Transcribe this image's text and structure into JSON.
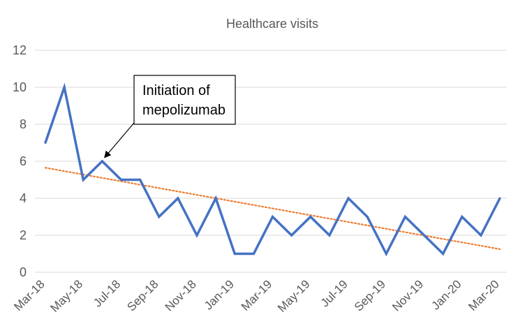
{
  "chart_data": {
    "type": "line",
    "title": "Healthcare visits",
    "xlabel": "",
    "ylabel": "",
    "ylim": [
      0,
      12
    ],
    "y_ticks": [
      0,
      2,
      4,
      6,
      8,
      10,
      12
    ],
    "x_tick_labels": [
      "Mar-18",
      "May-18",
      "Jul-18",
      "Sep-18",
      "Nov-18",
      "Jan-19",
      "Mar-19",
      "May-19",
      "Jul-19",
      "Sep-19",
      "Nov-19",
      "Jan-20",
      "Mar-20"
    ],
    "x": [
      "Mar-18",
      "Apr-18",
      "May-18",
      "Jun-18",
      "Jul-18",
      "Aug-18",
      "Sep-18",
      "Oct-18",
      "Nov-18",
      "Dec-18",
      "Jan-19",
      "Feb-19",
      "Mar-19",
      "Apr-19",
      "May-19",
      "Jun-19",
      "Jul-19",
      "Aug-19",
      "Sep-19",
      "Oct-19",
      "Nov-19",
      "Dec-19",
      "Jan-20",
      "Feb-20",
      "Mar-20"
    ],
    "series": [
      {
        "values": [
          7,
          10,
          5,
          6,
          5,
          5,
          3,
          4,
          2,
          4,
          1,
          1,
          3,
          2,
          3,
          2,
          4,
          3,
          1,
          3,
          2,
          1,
          3,
          2,
          4
        ],
        "color": "#4472C4",
        "style": "solid"
      }
    ],
    "trendline": {
      "type": "linear",
      "start": 5.65,
      "end": 1.25,
      "color": "#ED7D31",
      "style": "dotted"
    },
    "annotations": [
      {
        "text_lines": [
          "Initiation of",
          "mepolizumab"
        ],
        "points_to_x": "Jun-18",
        "points_to_y": 6
      }
    ],
    "grid": true,
    "legend": "none"
  }
}
